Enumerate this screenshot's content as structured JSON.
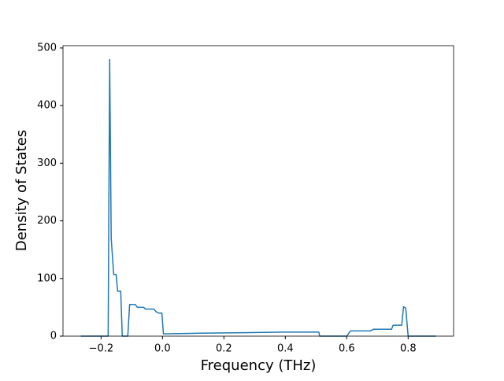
{
  "chart_data": {
    "type": "line",
    "xlabel": "Frequency (THz)",
    "ylabel": "Density of States",
    "x": [
      -0.266,
      -0.177,
      -0.172,
      -0.167,
      -0.159,
      -0.151,
      -0.146,
      -0.136,
      -0.131,
      -0.113,
      -0.107,
      -0.089,
      -0.082,
      -0.061,
      -0.056,
      -0.028,
      -0.02,
      -0.012,
      -0.002,
      0.003,
      0.111,
      0.265,
      0.394,
      0.509,
      0.512,
      0.6,
      0.612,
      0.677,
      0.687,
      0.746,
      0.751,
      0.779,
      0.785,
      0.792,
      0.8,
      0.89
    ],
    "series": [
      {
        "color": "#1f77b4",
        "values": [
          0,
          0,
          480,
          170,
          107,
          107,
          78,
          78,
          0,
          0,
          55,
          55,
          50,
          50,
          47,
          47,
          42,
          40,
          40,
          4,
          5,
          6,
          7,
          7,
          0,
          0,
          9,
          9,
          12,
          12,
          19,
          19,
          51,
          49,
          0,
          0
        ]
      }
    ],
    "xlim": [
      -0.324,
      0.948
    ],
    "ylim": [
      0,
      504
    ],
    "xticks": [
      {
        "value": -0.2,
        "label": "−0.2"
      },
      {
        "value": 0,
        "label": "0.0"
      },
      {
        "value": 0.2,
        "label": "0.2"
      },
      {
        "value": 0.4,
        "label": "0.4"
      },
      {
        "value": 0.6,
        "label": "0.6"
      },
      {
        "value": 0.8,
        "label": "0.8"
      }
    ],
    "yticks": [
      0,
      100,
      200,
      300,
      400,
      500
    ]
  }
}
